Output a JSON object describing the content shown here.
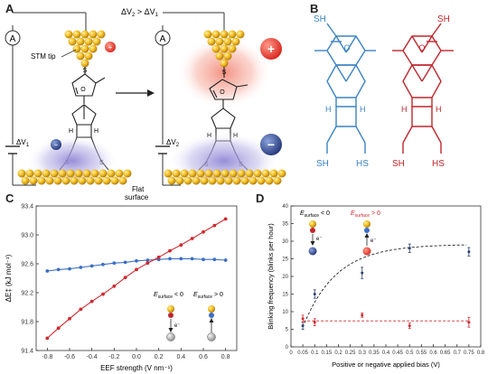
{
  "panels": {
    "a": "A",
    "b": "B",
    "c": "C",
    "d": "D"
  },
  "panel_a": {
    "ammeter": "A",
    "delta_v_compare_main": "ΔV",
    "delta_v_compare_sub2": "2",
    "delta_v_compare_gt": " > ΔV",
    "delta_v_compare_sub1": "1",
    "stm_tip": "STM tip",
    "delta_v1_main": "ΔV",
    "delta_v1_sub": "1",
    "delta_v2_main": "ΔV",
    "delta_v2_sub": "2",
    "flat_surface_line1": "Flat",
    "flat_surface_line2": "surface",
    "sulfur": "S",
    "oxygen": "O",
    "hydrogen": "H",
    "plus": "+",
    "minus": "−"
  },
  "panel_b": {
    "sh": "SH",
    "hs": "HS",
    "oxygen": "O",
    "hydrogen": "H",
    "colors": {
      "left": "#3d84c2",
      "right": "#c0272d"
    }
  },
  "chart_data": [
    {
      "type": "line",
      "panel": "C",
      "xlabel": "EEF strength (V nm⁻¹)",
      "ylabel": "ΔE‡ (kJ mol⁻¹)",
      "xlim": [
        -0.9,
        0.9
      ],
      "ylim": [
        91.4,
        93.4
      ],
      "xticks": [
        -0.8,
        -0.6,
        -0.4,
        -0.2,
        0.0,
        0.2,
        0.4,
        0.6,
        0.8
      ],
      "xtick_labels": [
        "-0.8",
        "-0.6",
        "-0.4",
        "-0.2",
        "0.0",
        "0.2",
        "0.4",
        "0.6",
        "0.8"
      ],
      "yticks": [
        91.4,
        91.8,
        92.2,
        92.6,
        93.0,
        93.4
      ],
      "ytick_labels": [
        "91.4",
        "91.8",
        "92.2",
        "92.6",
        "93.0",
        "93.4"
      ],
      "x": [
        -0.8,
        -0.7,
        -0.6,
        -0.5,
        -0.4,
        -0.3,
        -0.2,
        -0.1,
        0.0,
        0.1,
        0.2,
        0.3,
        0.4,
        0.5,
        0.6,
        0.7,
        0.8
      ],
      "series": [
        {
          "color": "#3d6fc4",
          "values": [
            92.5,
            92.52,
            92.53,
            92.55,
            92.57,
            92.59,
            92.61,
            92.62,
            92.64,
            92.65,
            92.66,
            92.67,
            92.67,
            92.67,
            92.66,
            92.66,
            92.65
          ]
        },
        {
          "color": "#d0292f",
          "values": [
            91.57,
            91.71,
            91.84,
            91.97,
            92.08,
            92.18,
            92.29,
            92.41,
            92.52,
            92.61,
            92.69,
            92.78,
            92.86,
            92.95,
            93.04,
            93.13,
            93.22
          ]
        }
      ],
      "inset": {
        "left_main": "E",
        "left_sub": "surface",
        "left_rel": " < 0",
        "right_main": "E",
        "right_sub": "surface",
        "right_rel": " > 0",
        "electron": "e⁻"
      },
      "grid": false
    },
    {
      "type": "scatter",
      "panel": "D",
      "xlabel": "Positive or negative applied bias (V)",
      "ylabel": "Blinking frequency (blinks per hour)",
      "xlim": [
        0.0,
        0.8
      ],
      "ylim": [
        0,
        40
      ],
      "xticks": [
        0.0,
        0.05,
        0.1,
        0.15,
        0.2,
        0.25,
        0.3,
        0.35,
        0.4,
        0.45,
        0.5,
        0.55,
        0.6,
        0.65,
        0.7,
        0.75,
        0.8
      ],
      "xtick_labels": [
        "0",
        "0.05",
        "0.1",
        "0.15",
        "0.2",
        "0.25",
        "0.3",
        "0.35",
        "0.4",
        "0.45",
        "0.5",
        "0.55",
        "0.6",
        "0.65",
        "0.7",
        "0.75",
        "0.8"
      ],
      "yticks": [
        0,
        5,
        10,
        15,
        20,
        25,
        30,
        35,
        40
      ],
      "ytick_labels": [
        "0",
        "5",
        "10",
        "15",
        "20",
        "25",
        "30",
        "35",
        "40"
      ],
      "series": [
        {
          "color": "#2c3e70",
          "x": [
            0.05,
            0.1,
            0.3,
            0.5,
            0.75
          ],
          "y": [
            6,
            15,
            21,
            28,
            27
          ],
          "err": [
            1,
            1.2,
            1.6,
            1.2,
            1.2
          ],
          "fit": "dashed"
        },
        {
          "color": "#d0292f",
          "x": [
            0.05,
            0.1,
            0.3,
            0.5,
            0.75
          ],
          "y": [
            8,
            7,
            9,
            6,
            7
          ],
          "err": [
            1,
            1,
            0.6,
            0.8,
            1.4
          ],
          "fit": "dashed"
        }
      ],
      "legend": {
        "neg_main": "E",
        "neg_sub": "surface",
        "neg_rel": " < 0",
        "pos_main": "E",
        "pos_sub": "surface",
        "pos_rel": " > 0",
        "electron": "e⁻",
        "neg_color": "#222222",
        "pos_color": "#d0292f"
      },
      "grid": false
    }
  ]
}
